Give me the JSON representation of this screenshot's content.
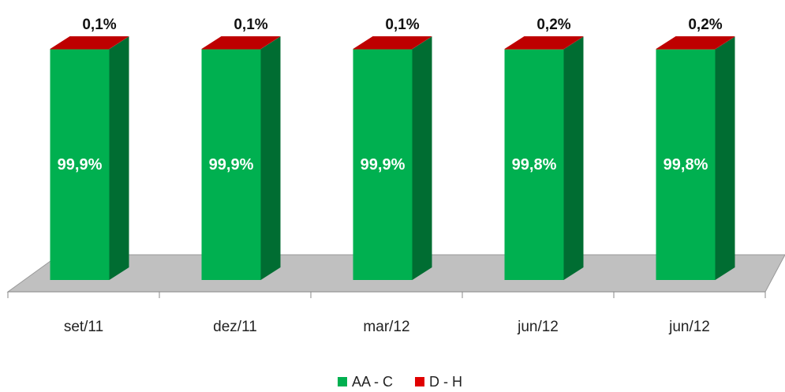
{
  "chart_data": {
    "type": "bar3d_stacked",
    "categories": [
      "set/11",
      "dez/11",
      "mar/12",
      "jun/12",
      "jun/12"
    ],
    "series": [
      {
        "name": "AA - C",
        "color": "#00b050",
        "values": [
          99.9,
          99.9,
          99.9,
          99.8,
          99.8
        ],
        "value_labels": [
          "99,9%",
          "99,9%",
          "99,9%",
          "99,8%",
          "99,8%"
        ]
      },
      {
        "name": "D - H",
        "color": "#e00000",
        "values": [
          0.1,
          0.1,
          0.1,
          0.2,
          0.2
        ],
        "value_labels": [
          "0,1%",
          "0,1%",
          "0,1%",
          "0,2%",
          "0,2%"
        ]
      }
    ]
  }
}
